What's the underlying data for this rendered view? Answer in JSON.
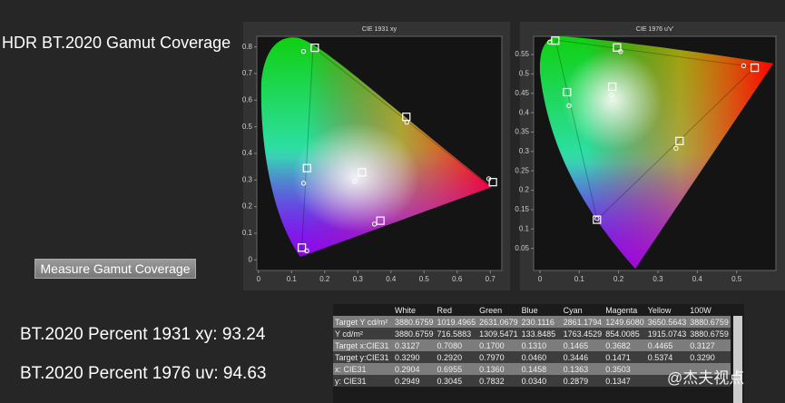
{
  "title": "HDR BT.2020  Gamut Coverage",
  "button": "Measure Gamut Coverage",
  "results": [
    "BT.2020 Percent 1931 xy: 93.24",
    "BT.2020 Percent 1976 uv: 94.63"
  ],
  "watermark": "@杰夫视点",
  "table": {
    "columns": [
      "White",
      "Red",
      "Green",
      "Blue",
      "Cyan",
      "Magenta",
      "Yellow",
      "100W"
    ],
    "rows": [
      {
        "label": "Target Y cd/m²",
        "cells": [
          "3880.6759",
          "1019.4965",
          "2631.0679",
          "230.1116",
          "2861.1794",
          "1249.6080",
          "3650.5643",
          "3880.6759"
        ]
      },
      {
        "label": "Y cd/m²",
        "cells": [
          "3880.6759",
          "716.5883",
          "1309.5471",
          "133.8485",
          "1763.4529",
          "854.0085",
          "1915.0743",
          "3880.6759"
        ]
      },
      {
        "label": "Target x:CIE31",
        "cells": [
          "0.3127",
          "0.7080",
          "0.1700",
          "0.1310",
          "0.1465",
          "0.3682",
          "0.4465",
          "0.3127"
        ]
      },
      {
        "label": "Target y:CIE31",
        "cells": [
          "0.3290",
          "0.2920",
          "0.7970",
          "0.0460",
          "0.3446",
          "0.1471",
          "0.5374",
          "0.3290"
        ]
      },
      {
        "label": "x: CIE31",
        "cells": [
          "0.2904",
          "0.6955",
          "0.1360",
          "0.1458",
          "0.1363",
          "0.3503",
          null,
          null
        ]
      },
      {
        "label": "y: CIE31",
        "cells": [
          "0.2949",
          "0.3045",
          "0.7832",
          "0.0340",
          "0.2879",
          "0.1347",
          null,
          null
        ]
      }
    ]
  },
  "chart_data": [
    {
      "type": "scatter",
      "title": "CIE 1931 xy",
      "xlim": [
        -0.005,
        0.735
      ],
      "ylim": [
        -0.04,
        0.84
      ],
      "xticks": [
        0,
        0.1,
        0.2,
        0.3,
        0.4,
        0.5,
        0.6,
        0.7
      ],
      "yticks": [
        0,
        0.1,
        0.2,
        0.3,
        0.4,
        0.5,
        0.6,
        0.7,
        0.8
      ],
      "series": [
        {
          "marker": "square",
          "color": "#ffffff",
          "x": [
            0.3127,
            0.708,
            0.17,
            0.131,
            0.1465,
            0.3682,
            0.4465
          ],
          "values": [
            0.329,
            0.292,
            0.797,
            0.046,
            0.3446,
            0.1471,
            0.5374
          ]
        },
        {
          "marker": "circle",
          "color": "#ffffff",
          "x": [
            0.2904,
            0.6955,
            0.136,
            0.1458,
            0.1363,
            0.3503,
            0.448
          ],
          "values": [
            0.2949,
            0.3045,
            0.7832,
            0.034,
            0.2879,
            0.1347,
            0.517
          ]
        }
      ]
    },
    {
      "type": "scatter",
      "title": "CIE 1976 u'v'",
      "xlim": [
        -0.016,
        0.6
      ],
      "ylim": [
        -0.007,
        0.597
      ],
      "xticks": [
        0,
        0.1,
        0.2,
        0.3,
        0.4,
        0.5
      ],
      "yticks": [
        0.05,
        0.1,
        0.15,
        0.2,
        0.25,
        0.3,
        0.35,
        0.4,
        0.45,
        0.5,
        0.55
      ],
      "series": [
        {
          "marker": "square",
          "color": "#ffffff",
          "x": [
            0.184,
            0.546,
            0.039,
            0.145,
            0.069,
            0.355,
            0.196
          ],
          "values": [
            0.467,
            0.516,
            0.586,
            0.124,
            0.453,
            0.327,
            0.568
          ]
        },
        {
          "marker": "circle",
          "color": "#ffffff",
          "x": [
            0.182,
            0.518,
            0.025,
            0.145,
            0.074,
            0.346,
            0.205
          ],
          "values": [
            0.446,
            0.521,
            0.582,
            0.127,
            0.418,
            0.308,
            0.558
          ]
        }
      ]
    }
  ]
}
